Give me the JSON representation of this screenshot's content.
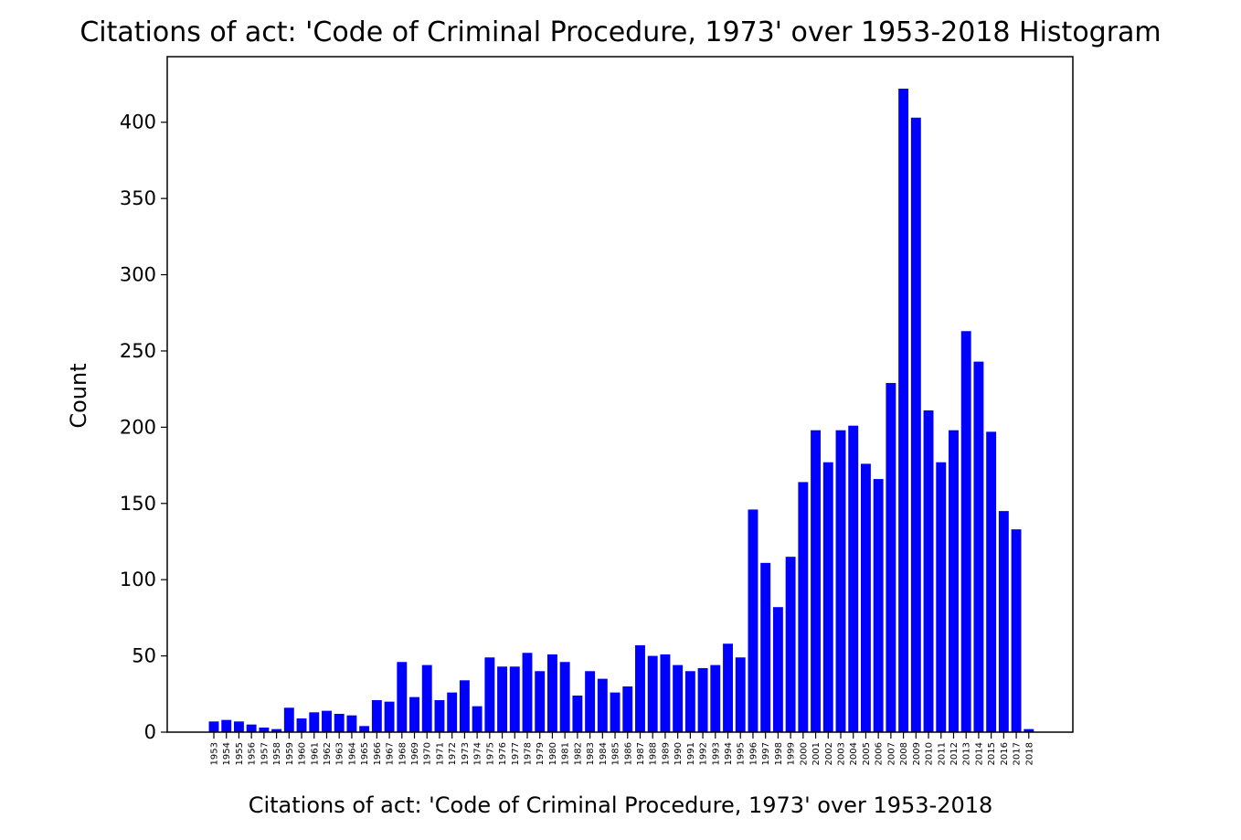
{
  "chart_data": {
    "type": "bar",
    "title": "Citations of act: 'Code of Criminal Procedure, 1973' over 1953-2018 Histogram",
    "xlabel": "Citations of act: 'Code of Criminal Procedure, 1973' over 1953-2018",
    "ylabel": "Count",
    "ylim": [
      0,
      443
    ],
    "yticks": [
      0,
      50,
      100,
      150,
      200,
      250,
      300,
      350,
      400
    ],
    "grid": false,
    "legend": "none",
    "bar_color": "#0000ff",
    "categories": [
      "1953",
      "1954",
      "1955",
      "1956",
      "1957",
      "1958",
      "1959",
      "1960",
      "1961",
      "1962",
      "1963",
      "1964",
      "1965",
      "1966",
      "1967",
      "1968",
      "1969",
      "1970",
      "1971",
      "1972",
      "1973",
      "1974",
      "1975",
      "1976",
      "1977",
      "1978",
      "1979",
      "1980",
      "1981",
      "1982",
      "1983",
      "1984",
      "1985",
      "1986",
      "1987",
      "1988",
      "1989",
      "1990",
      "1991",
      "1992",
      "1993",
      "1994",
      "1995",
      "1996",
      "1997",
      "1998",
      "1999",
      "2000",
      "2001",
      "2002",
      "2003",
      "2004",
      "2005",
      "2006",
      "2007",
      "2008",
      "2009",
      "2010",
      "2011",
      "2012",
      "2013",
      "2014",
      "2015",
      "2016",
      "2017",
      "2018"
    ],
    "values": [
      7,
      8,
      7,
      5,
      3,
      2,
      16,
      9,
      13,
      14,
      12,
      11,
      4,
      21,
      20,
      46,
      23,
      44,
      21,
      26,
      34,
      17,
      49,
      43,
      43,
      52,
      40,
      51,
      46,
      24,
      40,
      35,
      26,
      30,
      57,
      50,
      51,
      44,
      40,
      42,
      44,
      58,
      49,
      146,
      111,
      82,
      115,
      164,
      198,
      177,
      198,
      201,
      176,
      166,
      229,
      422,
      403,
      211,
      177,
      198,
      263,
      243,
      197,
      145,
      133,
      2
    ]
  }
}
